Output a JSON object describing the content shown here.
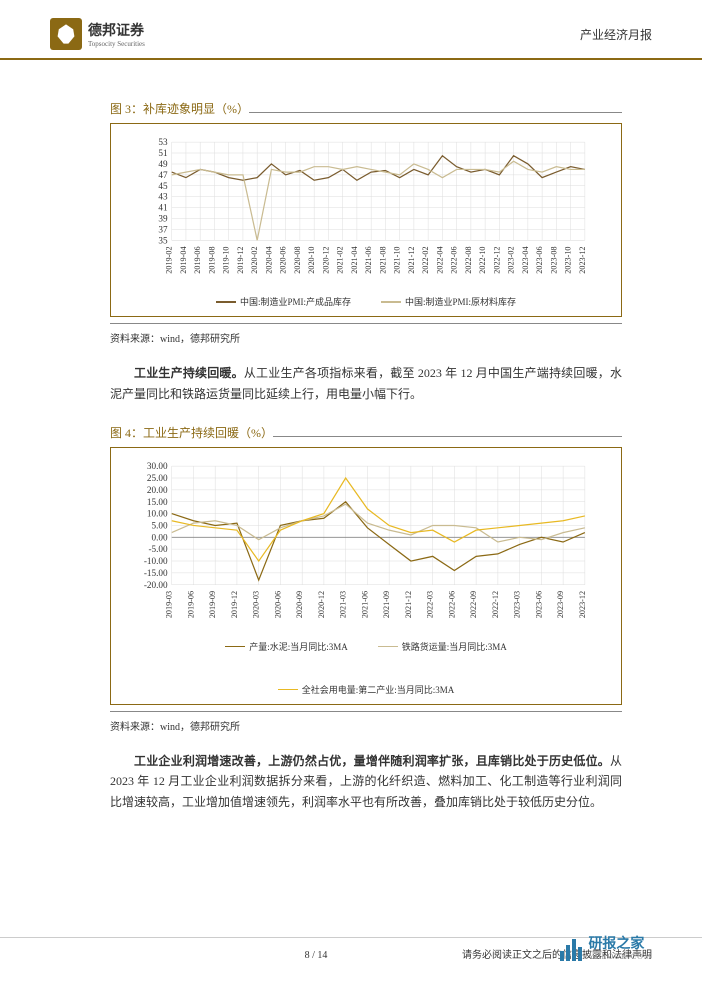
{
  "header": {
    "logo_main": "德邦证券",
    "logo_sub": "Topsocity Securities",
    "right": "产业经济月报"
  },
  "fig3": {
    "title": "图 3：补库迹象明显（%）",
    "source": "资料来源：wind，德邦研究所",
    "type": "line",
    "ylim": [
      35,
      53
    ],
    "ytick_step": 2,
    "y_ticks": [
      35,
      37,
      39,
      41,
      43,
      45,
      47,
      49,
      51,
      53
    ],
    "x_labels": [
      "2019-02",
      "2019-04",
      "2019-06",
      "2019-08",
      "2019-10",
      "2019-12",
      "2020-02",
      "2020-04",
      "2020-06",
      "2020-08",
      "2020-10",
      "2020-12",
      "2021-02",
      "2021-04",
      "2021-06",
      "2021-08",
      "2021-10",
      "2021-12",
      "2022-02",
      "2022-04",
      "2022-06",
      "2022-08",
      "2022-10",
      "2022-12",
      "2023-02",
      "2023-04",
      "2023-06",
      "2023-08",
      "2023-10",
      "2023-12"
    ],
    "series": [
      {
        "name": "中国:制造业PMI:产成品库存",
        "color": "#7a5c2e",
        "values": [
          47.5,
          46.5,
          48.0,
          47.5,
          46.5,
          46.0,
          46.5,
          49.0,
          47.0,
          47.8,
          46.0,
          46.5,
          48.0,
          46.0,
          47.5,
          47.8,
          46.5,
          48.0,
          47.0,
          50.5,
          48.5,
          47.5,
          48.0,
          47.0,
          50.5,
          49.0,
          46.5,
          47.5,
          48.5,
          48.0
        ]
      },
      {
        "name": "中国:制造业PMI:原材料库存",
        "color": "#c9bb91",
        "values": [
          47.0,
          47.5,
          48.0,
          47.5,
          47.0,
          47.0,
          35.0,
          48.0,
          47.5,
          47.5,
          48.5,
          48.5,
          48.0,
          48.5,
          48.0,
          47.5,
          47.0,
          49.0,
          48.0,
          46.5,
          48.0,
          48.0,
          48.0,
          47.5,
          49.5,
          48.0,
          47.5,
          48.5,
          48.0,
          48.0
        ]
      }
    ],
    "grid_color": "#dddddd",
    "background_color": "#ffffff",
    "label_fontsize": 9,
    "line_width": 1.2
  },
  "para1": {
    "bold": "工业生产持续回暖。",
    "text": "从工业生产各项指标来看，截至 2023 年 12 月中国生产端持续回暖，水泥产量同比和铁路运货量同比延续上行，用电量小幅下行。"
  },
  "fig4": {
    "title": "图 4：工业生产持续回暖（%）",
    "source": "资料来源：wind，德邦研究所",
    "type": "line",
    "ylim": [
      -20,
      30
    ],
    "ytick_step": 5,
    "y_ticks": [
      -20,
      -15,
      -10,
      -5,
      0,
      5,
      10,
      15,
      20,
      25,
      30
    ],
    "x_labels": [
      "2019-03",
      "2019-06",
      "2019-09",
      "2019-12",
      "2020-03",
      "2020-06",
      "2020-09",
      "2020-12",
      "2021-03",
      "2021-06",
      "2021-09",
      "2021-12",
      "2022-03",
      "2022-06",
      "2022-09",
      "2022-12",
      "2023-03",
      "2023-06",
      "2023-09",
      "2023-12"
    ],
    "series": [
      {
        "name": "产量:水泥:当月同比:3MA",
        "color": "#8b6914",
        "values": [
          10,
          7,
          5,
          6,
          -18,
          5,
          7,
          8,
          15,
          4,
          -3,
          -10,
          -8,
          -14,
          -8,
          -7,
          -3,
          0,
          -2,
          2
        ]
      },
      {
        "name": "铁路货运量:当月同比:3MA",
        "color": "#c9bb91",
        "values": [
          2,
          6,
          7,
          5,
          -1,
          4,
          7,
          9,
          14,
          6,
          3,
          1,
          5,
          5,
          4,
          -2,
          0,
          -1,
          2,
          4
        ]
      },
      {
        "name": "全社会用电量:第二产业:当月同比:3MA",
        "color": "#e8b923",
        "values": [
          7,
          5,
          4,
          3,
          -10,
          3,
          7,
          10,
          25,
          12,
          5,
          2,
          3,
          -2,
          3,
          4,
          5,
          6,
          7,
          9
        ]
      }
    ],
    "grid_color": "#dddddd",
    "background_color": "#ffffff",
    "label_fontsize": 9,
    "line_width": 1.2
  },
  "para2": {
    "bold": "工业企业利润增速改善，上游仍然占优，量增伴随利润率扩张，且库销比处于历史低位。",
    "text": "从 2023 年 12 月工业企业利润数据拆分来看，上游的化纤织造、燃料加工、化工制造等行业利润同比增速较高，工业增加值增速领先，利润率水平也有所改善，叠加库销比处于较低历史分位。"
  },
  "footer": {
    "page": "8 / 14",
    "disclaimer": "请务必阅读正文之后的信息披露和法律声明"
  },
  "watermark": {
    "name": "研报之家",
    "sub": "YBLOOK.COM"
  }
}
